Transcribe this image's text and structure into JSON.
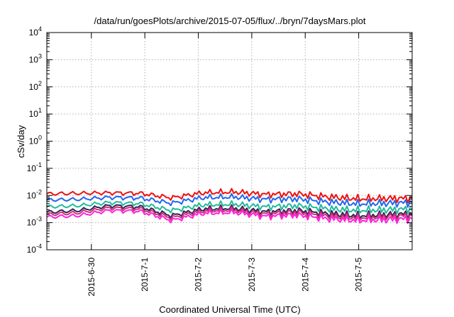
{
  "chart_data": {
    "type": "line",
    "title": "/data/run/goesPlots/archive/2015-07-05/flux/../bryn/7daysMars.plot",
    "xlabel": "Coordinated Universal Time (UTC)",
    "ylabel": "cSv/day",
    "yscale": "log",
    "ylim": [
      0.0001,
      10000
    ],
    "xlim": [
      "2015-06-29 04:00",
      "2015-07-05 24:00"
    ],
    "grid": true,
    "y_ticks": [
      {
        "base": "10",
        "exp": "-4"
      },
      {
        "base": "10",
        "exp": "-3"
      },
      {
        "base": "10",
        "exp": "-2"
      },
      {
        "base": "10",
        "exp": "-1"
      },
      {
        "base": "10",
        "exp": "0"
      },
      {
        "base": "10",
        "exp": "1"
      },
      {
        "base": "10",
        "exp": "2"
      },
      {
        "base": "10",
        "exp": "3"
      },
      {
        "base": "10",
        "exp": "4"
      }
    ],
    "x_ticks": [
      "2015-6-30",
      "2015-7-1",
      "2015-7-2",
      "2015-7-3",
      "2015-7-4",
      "2015-7-5"
    ],
    "series": [
      {
        "color": "#ee1111",
        "x": [
          "2015-06-29 04:00",
          "2015-06-29 18:00",
          "2015-06-30 08:00",
          "2015-06-30 22:00",
          "2015-07-01 12:00",
          "2015-07-02 02:00",
          "2015-07-02 16:00",
          "2015-07-03 06:00",
          "2015-07-03 20:00",
          "2015-07-04 10:00",
          "2015-07-05 00:00",
          "2015-07-05 14:00",
          "2015-07-05 24:00"
        ],
        "values": [
          0.0115,
          0.012,
          0.0125,
          0.012,
          0.0082,
          0.0125,
          0.0135,
          0.011,
          0.0115,
          0.009,
          0.0075,
          0.0078,
          0.0078
        ]
      },
      {
        "color": "#2266ee",
        "x": [
          "2015-06-29 04:00",
          "2015-06-29 18:00",
          "2015-06-30 08:00",
          "2015-06-30 22:00",
          "2015-07-01 12:00",
          "2015-07-02 02:00",
          "2015-07-02 16:00",
          "2015-07-03 06:00",
          "2015-07-03 20:00",
          "2015-07-04 10:00",
          "2015-07-05 00:00",
          "2015-07-05 14:00",
          "2015-07-05 24:00"
        ],
        "values": [
          0.0068,
          0.0072,
          0.0085,
          0.008,
          0.0052,
          0.0083,
          0.0088,
          0.0072,
          0.0075,
          0.0058,
          0.0049,
          0.0052,
          0.0055
        ]
      },
      {
        "color": "#22bb99",
        "x": [
          "2015-06-29 04:00",
          "2015-06-29 18:00",
          "2015-06-30 08:00",
          "2015-06-30 22:00",
          "2015-07-01 12:00",
          "2015-07-02 02:00",
          "2015-07-02 16:00",
          "2015-07-03 06:00",
          "2015-07-03 20:00",
          "2015-07-04 10:00",
          "2015-07-05 00:00",
          "2015-07-05 14:00",
          "2015-07-05 24:00"
        ],
        "values": [
          0.0038,
          0.0042,
          0.0055,
          0.005,
          0.0028,
          0.0045,
          0.0048,
          0.0038,
          0.0042,
          0.0033,
          0.0028,
          0.003,
          0.0032
        ]
      },
      {
        "color": "#332255",
        "x": [
          "2015-06-29 04:00",
          "2015-06-29 18:00",
          "2015-06-30 08:00",
          "2015-06-30 22:00",
          "2015-07-01 12:00",
          "2015-07-02 02:00",
          "2015-07-02 16:00",
          "2015-07-03 06:00",
          "2015-07-03 20:00",
          "2015-07-04 10:00",
          "2015-07-05 00:00",
          "2015-07-05 14:00",
          "2015-07-05 24:00"
        ],
        "values": [
          0.0024,
          0.0028,
          0.0042,
          0.0038,
          0.0018,
          0.0032,
          0.0034,
          0.0025,
          0.0028,
          0.0022,
          0.0018,
          0.002,
          0.0021
        ]
      },
      {
        "color": "#cc3377",
        "x": [
          "2015-06-29 04:00",
          "2015-06-29 18:00",
          "2015-06-30 08:00",
          "2015-06-30 22:00",
          "2015-07-01 12:00",
          "2015-07-02 02:00",
          "2015-07-02 16:00",
          "2015-07-03 06:00",
          "2015-07-03 20:00",
          "2015-07-04 10:00",
          "2015-07-05 00:00",
          "2015-07-05 14:00",
          "2015-07-05 24:00"
        ],
        "values": [
          0.002,
          0.0023,
          0.0035,
          0.0032,
          0.0015,
          0.0027,
          0.0029,
          0.0021,
          0.0024,
          0.0018,
          0.0015,
          0.0017,
          0.0018
        ]
      },
      {
        "color": "#ff22dd",
        "x": [
          "2015-06-29 04:00",
          "2015-06-29 18:00",
          "2015-06-30 08:00",
          "2015-06-30 22:00",
          "2015-07-01 12:00",
          "2015-07-02 02:00",
          "2015-07-02 16:00",
          "2015-07-03 06:00",
          "2015-07-03 20:00",
          "2015-07-04 10:00",
          "2015-07-05 00:00",
          "2015-07-05 14:00",
          "2015-07-05 24:00"
        ],
        "values": [
          0.0016,
          0.0018,
          0.0028,
          0.0026,
          0.0012,
          0.0022,
          0.0024,
          0.0017,
          0.0019,
          0.0014,
          0.0012,
          0.0013,
          0.0014
        ]
      }
    ]
  }
}
